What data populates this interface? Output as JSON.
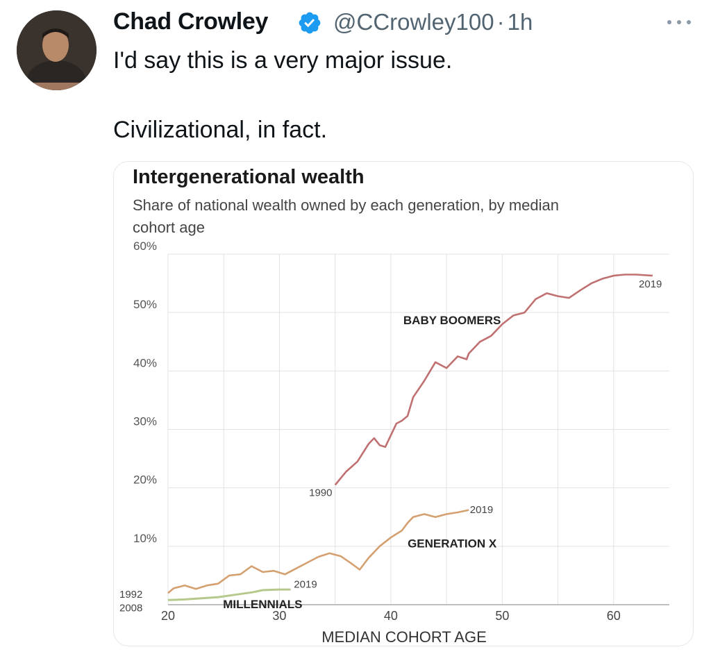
{
  "tweet": {
    "author_name": "Chad Crowley",
    "handle": "@CCrowley100",
    "separator": "·",
    "time": "1h",
    "lines": [
      "I'd say this is a very major issue.",
      "Civilizational, in fact."
    ],
    "icons": {
      "verified": "verified-badge-icon",
      "more": "more-options-icon"
    },
    "colors": {
      "verified": "#1d9bf0",
      "text": "#0f1419",
      "secondary": "#536471"
    }
  },
  "chart_data": {
    "type": "line",
    "title": "Intergenerational wealth",
    "subtitle_lines": [
      "Share of national wealth owned by each generation, by median",
      "cohort age"
    ],
    "xlabel": "MEDIAN COHORT AGE",
    "ylabel": "",
    "xlim": [
      20,
      65
    ],
    "ylim": [
      0,
      60
    ],
    "x_ticks": [
      {
        "v": 20,
        "label": "20"
      },
      {
        "v": 30,
        "label": "30"
      },
      {
        "v": 40,
        "label": "40"
      },
      {
        "v": 50,
        "label": "50"
      },
      {
        "v": 60,
        "label": "60"
      }
    ],
    "y_ticks": [
      {
        "v": 10,
        "label": "10%"
      },
      {
        "v": 20,
        "label": "20%"
      },
      {
        "v": 30,
        "label": "30%"
      },
      {
        "v": 40,
        "label": "40%"
      },
      {
        "v": 50,
        "label": "50%"
      },
      {
        "v": 60,
        "label": "60%"
      }
    ],
    "grid": true,
    "series": [
      {
        "name": "BABY BOOMERS",
        "color": "#c07070",
        "start_label": "1990",
        "end_label": "2019",
        "points": [
          [
            35,
            20.5
          ],
          [
            36,
            22.8
          ],
          [
            37,
            24.5
          ],
          [
            38,
            27.5
          ],
          [
            38.5,
            28.5
          ],
          [
            39,
            27.3
          ],
          [
            39.5,
            27.0
          ],
          [
            40,
            29.0
          ],
          [
            40.5,
            31.0
          ],
          [
            41,
            31.5
          ],
          [
            41.5,
            32.3
          ],
          [
            42,
            35.5
          ],
          [
            43,
            38.3
          ],
          [
            44,
            41.5
          ],
          [
            45,
            40.5
          ],
          [
            46,
            42.5
          ],
          [
            46.8,
            42.0
          ],
          [
            47,
            43.0
          ],
          [
            48,
            45.0
          ],
          [
            49,
            46.0
          ],
          [
            50,
            48.0
          ],
          [
            51,
            49.5
          ],
          [
            52,
            50.0
          ],
          [
            53,
            52.3
          ],
          [
            54,
            53.3
          ],
          [
            55,
            52.8
          ],
          [
            56,
            52.5
          ],
          [
            57,
            53.8
          ],
          [
            58,
            55.0
          ],
          [
            59,
            55.8
          ],
          [
            60,
            56.3
          ],
          [
            61,
            56.5
          ],
          [
            62,
            56.5
          ],
          [
            63.5,
            56.3
          ]
        ]
      },
      {
        "name": "GENERATION X",
        "color": "#d4a070",
        "start_label": "1992",
        "end_label": "2019",
        "points": [
          [
            20,
            2.0
          ],
          [
            20.5,
            2.8
          ],
          [
            21.5,
            3.3
          ],
          [
            22.5,
            2.7
          ],
          [
            23.5,
            3.3
          ],
          [
            24.5,
            3.6
          ],
          [
            25.5,
            5.0
          ],
          [
            26.5,
            5.2
          ],
          [
            27.5,
            6.6
          ],
          [
            28.5,
            5.6
          ],
          [
            29.5,
            5.8
          ],
          [
            30.5,
            5.2
          ],
          [
            31.5,
            6.2
          ],
          [
            32.5,
            7.2
          ],
          [
            33.5,
            8.2
          ],
          [
            34.5,
            8.8
          ],
          [
            35.5,
            8.3
          ],
          [
            36.5,
            7.0
          ],
          [
            37.2,
            6.0
          ],
          [
            38,
            8.0
          ],
          [
            39,
            10.0
          ],
          [
            40,
            11.5
          ],
          [
            41,
            12.7
          ],
          [
            41.5,
            14.0
          ],
          [
            42,
            15.0
          ],
          [
            43,
            15.5
          ],
          [
            44,
            15.0
          ],
          [
            45,
            15.5
          ],
          [
            46,
            15.8
          ],
          [
            47,
            16.2
          ]
        ]
      },
      {
        "name": "MILLENNIALS",
        "color": "#b5c98a",
        "start_label": "2008",
        "end_label": "2019",
        "points": [
          [
            20,
            0.8
          ],
          [
            21.5,
            0.9
          ],
          [
            23,
            1.1
          ],
          [
            24.5,
            1.3
          ],
          [
            26,
            1.7
          ],
          [
            27.5,
            2.1
          ],
          [
            28.5,
            2.5
          ],
          [
            30,
            2.6
          ],
          [
            31,
            2.6
          ]
        ]
      }
    ]
  }
}
